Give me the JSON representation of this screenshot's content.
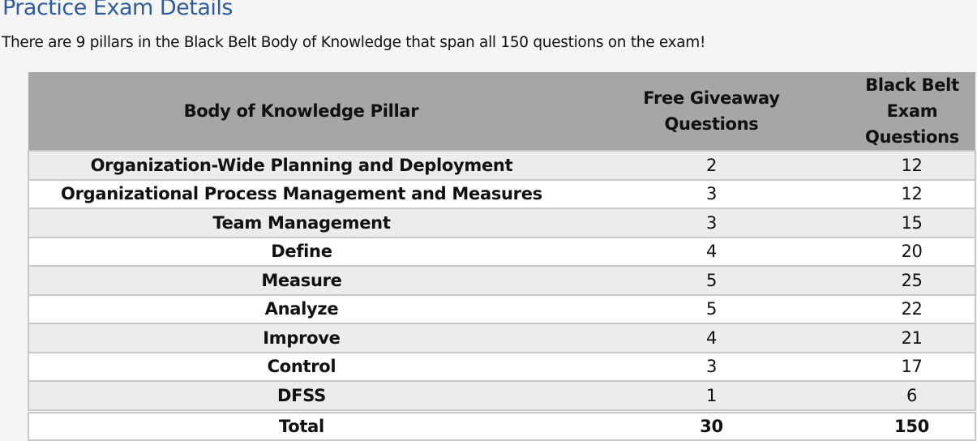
{
  "title": "Practice Exam Details",
  "intro": "There are 9 pillars in the Black Belt Body of Knowledge that span all 150 questions on the exam!",
  "table": {
    "headers": [
      "Body of Knowledge Pillar",
      "Free Giveaway Questions",
      "Black Belt Exam Questions"
    ],
    "rows": [
      [
        "Organization-Wide Planning and Deployment",
        "2",
        "12"
      ],
      [
        "Organizational Process Management and Measures",
        "3",
        "12"
      ],
      [
        "Team Management",
        "3",
        "15"
      ],
      [
        "Define",
        "4",
        "20"
      ],
      [
        "Measure",
        "5",
        "25"
      ],
      [
        "Analyze",
        "5",
        "22"
      ],
      [
        "Improve",
        "4",
        "21"
      ],
      [
        "Control",
        "3",
        "17"
      ],
      [
        "DFSS",
        "1",
        "6"
      ]
    ],
    "total": [
      "Total",
      "30",
      "150"
    ]
  }
}
